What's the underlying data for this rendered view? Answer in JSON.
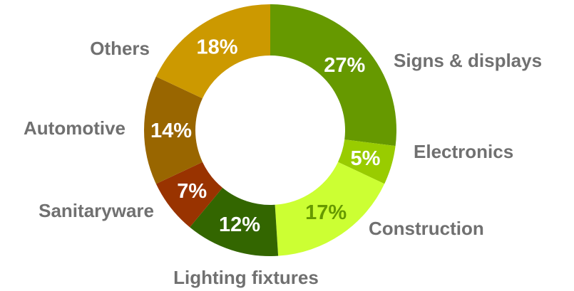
{
  "chart_data": {
    "type": "pie",
    "variant": "donut",
    "categories": [
      "Signs & displays",
      "Electronics",
      "Construction",
      "Lighting fixtures",
      "Sanitaryware",
      "Automotive",
      "Others"
    ],
    "values": [
      27,
      5,
      17,
      12,
      7,
      14,
      18
    ],
    "value_labels": [
      "27%",
      "5%",
      "17%",
      "12%",
      "7%",
      "14%",
      "18%"
    ],
    "colors": [
      "#669900",
      "#99cc00",
      "#ccff33",
      "#336600",
      "#993300",
      "#996600",
      "#cc9900"
    ],
    "value_label_colors": [
      "#ffffff",
      "#ffffff",
      "#669900",
      "#ffffff",
      "#ffffff",
      "#ffffff",
      "#ffffff"
    ],
    "category_label_color": "#707070",
    "start_angle_deg": 0,
    "direction": "clockwise",
    "legend": "none"
  }
}
